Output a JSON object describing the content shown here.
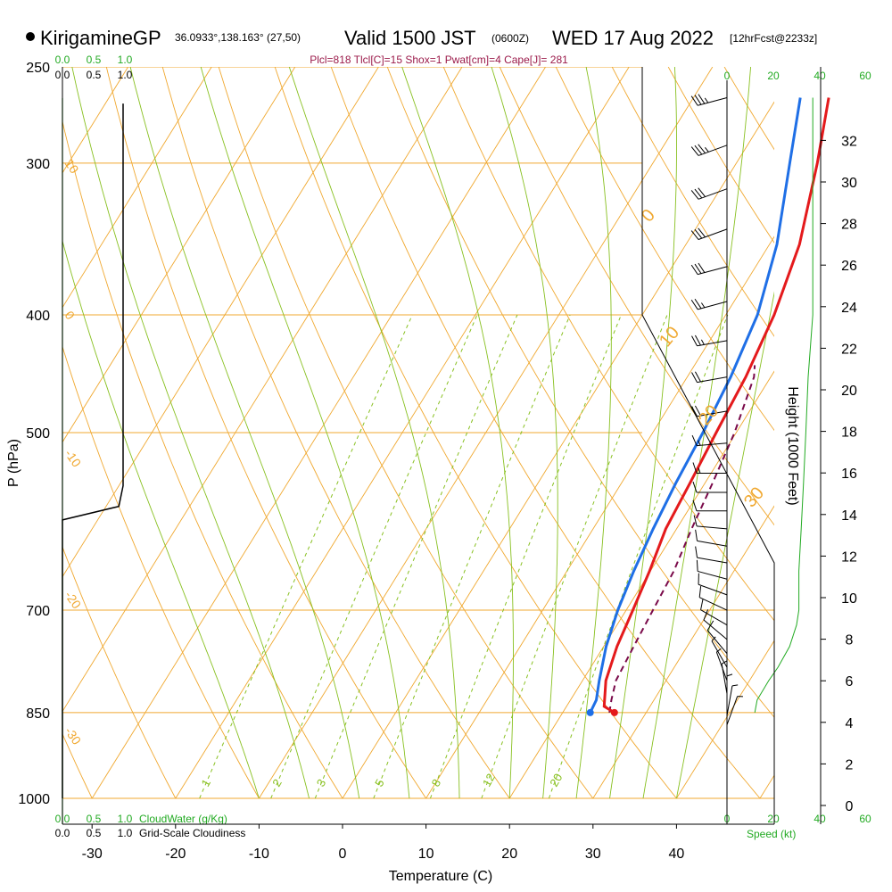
{
  "header": {
    "station": "KirigamineGP",
    "coords": "36.0933°,138.163° (27,50)",
    "valid_main": "Valid 1500 JST",
    "valid_utc": "(0600Z)",
    "valid_date": "WED 17 Aug 2022",
    "forecast": "[12hrFcst@2233z]",
    "params": "Plcl=818 Tlcl[C]=15 Shox=1 Pwat[cm]=4 Cape[J]= 281"
  },
  "colors": {
    "temp": "#e41a1c",
    "dewpoint": "#1f6fe6",
    "parcel": "#7a0a4a",
    "isobar": "#f0a830",
    "isotherm": "#f0a830",
    "dry_adiabat": "#f0a830",
    "moist_adiabat": "#88c020",
    "mixing_ratio": "#88c020",
    "cloud": "#22aa22",
    "wind_speed": "#22aa22"
  },
  "chart_data": {
    "type": "line",
    "title": "KirigamineGP Valid 1500 JST (0600Z) WED 17 Aug 2022",
    "xlabel": "Temperature (C)",
    "ylabel": "P (hPa)",
    "y2label": "Height (1000 Feet)",
    "xlim": [
      -34,
      48
    ],
    "ylim": [
      1000,
      250
    ],
    "pressure_ticks": [
      250,
      300,
      400,
      500,
      700,
      850,
      1000
    ],
    "temp_ticks": [
      -30,
      -20,
      -10,
      0,
      10,
      20,
      30,
      40
    ],
    "temp_tick_labels": [
      "-30",
      "-20",
      "-10",
      "0",
      "10",
      "20",
      "30",
      "40"
    ],
    "height_ticks": [
      0,
      2,
      4,
      6,
      8,
      10,
      12,
      14,
      16,
      18,
      20,
      22,
      24,
      26,
      28,
      30,
      32
    ],
    "isotherm_labels": [
      {
        "t": 0,
        "text": "0"
      },
      {
        "t": 10,
        "text": "10"
      },
      {
        "t": 20,
        "text": "20"
      },
      {
        "t": 30,
        "text": "30"
      }
    ],
    "dry_adiabat_labels": [
      {
        "text": "10",
        "p": 300
      },
      {
        "text": "0",
        "p": 400
      },
      {
        "text": "-10",
        "p": 520
      },
      {
        "text": "-20",
        "p": 680
      },
      {
        "text": "-30",
        "p": 880
      }
    ],
    "mixing_ratio_lines": [
      1,
      2,
      3,
      5,
      8,
      12,
      20
    ],
    "mixing_ratio_labels": [
      "1",
      "2",
      "3",
      "5",
      "8",
      "12",
      "20"
    ],
    "series": [
      {
        "name": "Temperature",
        "points": [
          [
            850,
            26.2
          ],
          [
            840,
            24.5
          ],
          [
            800,
            22.8
          ],
          [
            750,
            21.6
          ],
          [
            700,
            20.8
          ],
          [
            650,
            19.9
          ],
          [
            600,
            18.7
          ],
          [
            550,
            18.2
          ],
          [
            500,
            17.6
          ],
          [
            450,
            17.0
          ],
          [
            400,
            15.8
          ],
          [
            350,
            13.6
          ],
          [
            300,
            9.7
          ],
          [
            265,
            6.2
          ]
        ]
      },
      {
        "name": "Dewpoint",
        "points": [
          [
            850,
            23.3
          ],
          [
            830,
            23.1
          ],
          [
            800,
            22.0
          ],
          [
            750,
            20.3
          ],
          [
            700,
            19.0
          ],
          [
            650,
            18.0
          ],
          [
            600,
            17.2
          ],
          [
            550,
            16.5
          ],
          [
            500,
            16.0
          ],
          [
            450,
            15.2
          ],
          [
            400,
            13.8
          ],
          [
            350,
            10.9
          ],
          [
            300,
            6.4
          ],
          [
            265,
            2.8
          ]
        ]
      },
      {
        "name": "Parcel",
        "points": [
          [
            850,
            25.6
          ],
          [
            830,
            24.9
          ],
          [
            800,
            24.0
          ],
          [
            750,
            23.6
          ],
          [
            700,
            23.2
          ],
          [
            650,
            22.8
          ],
          [
            600,
            21.8
          ],
          [
            550,
            20.9
          ],
          [
            500,
            19.8
          ],
          [
            450,
            18.0
          ],
          [
            440,
            17.2
          ]
        ]
      }
    ],
    "surface": {
      "p": 850,
      "t": 26.2,
      "td": 23.3
    },
    "cloud_axis": {
      "top_labels": [
        "0.0",
        "0.5",
        "1.0"
      ],
      "bottom_labels": [
        "0.0",
        "0.5",
        "1.0"
      ],
      "cloud_water_label": "CloudWater (g/Kg)",
      "cloudiness_label": "Grid-Scale Cloudiness",
      "cloudiness_profile": [
        [
          1000,
          0.0
        ],
        [
          590,
          0.0
        ],
        [
          575,
          0.93
        ],
        [
          553,
          1.0
        ],
        [
          268,
          1.0
        ]
      ]
    },
    "wind": {
      "speed_ticks": [
        0,
        20,
        40,
        60
      ],
      "speed_label": "Speed (kt)",
      "barbs": [
        {
          "p": 265,
          "dir": 255,
          "spd": 38
        },
        {
          "p": 290,
          "dir": 250,
          "spd": 35
        },
        {
          "p": 315,
          "dir": 250,
          "spd": 33
        },
        {
          "p": 340,
          "dir": 250,
          "spd": 32
        },
        {
          "p": 365,
          "dir": 255,
          "spd": 30
        },
        {
          "p": 390,
          "dir": 255,
          "spd": 28
        },
        {
          "p": 420,
          "dir": 260,
          "spd": 26
        },
        {
          "p": 450,
          "dir": 260,
          "spd": 24
        },
        {
          "p": 480,
          "dir": 260,
          "spd": 22
        },
        {
          "p": 510,
          "dir": 265,
          "spd": 18
        },
        {
          "p": 540,
          "dir": 270,
          "spd": 15
        },
        {
          "p": 560,
          "dir": 270,
          "spd": 14
        },
        {
          "p": 580,
          "dir": 270,
          "spd": 12
        },
        {
          "p": 600,
          "dir": 275,
          "spd": 12
        },
        {
          "p": 620,
          "dir": 280,
          "spd": 11
        },
        {
          "p": 640,
          "dir": 280,
          "spd": 11
        },
        {
          "p": 660,
          "dir": 285,
          "spd": 10
        },
        {
          "p": 680,
          "dir": 290,
          "spd": 10
        },
        {
          "p": 700,
          "dir": 295,
          "spd": 10
        },
        {
          "p": 720,
          "dir": 300,
          "spd": 10
        },
        {
          "p": 740,
          "dir": 310,
          "spd": 10
        },
        {
          "p": 760,
          "dir": 320,
          "spd": 10
        },
        {
          "p": 780,
          "dir": 330,
          "spd": 8
        },
        {
          "p": 800,
          "dir": 340,
          "spd": 8
        },
        {
          "p": 820,
          "dir": 350,
          "spd": 7
        },
        {
          "p": 840,
          "dir": 0,
          "spd": 5
        },
        {
          "p": 855,
          "dir": 10,
          "spd": 5
        },
        {
          "p": 870,
          "dir": 20,
          "spd": 5
        }
      ],
      "speed_profile": [
        [
          850,
          12
        ],
        [
          830,
          13
        ],
        [
          800,
          18
        ],
        [
          780,
          22
        ],
        [
          750,
          27
        ],
        [
          720,
          30
        ],
        [
          700,
          31
        ],
        [
          650,
          31
        ],
        [
          600,
          32
        ],
        [
          550,
          33
        ],
        [
          500,
          34
        ],
        [
          450,
          35
        ],
        [
          400,
          37
        ],
        [
          350,
          37
        ],
        [
          300,
          37
        ],
        [
          265,
          37
        ]
      ]
    }
  }
}
